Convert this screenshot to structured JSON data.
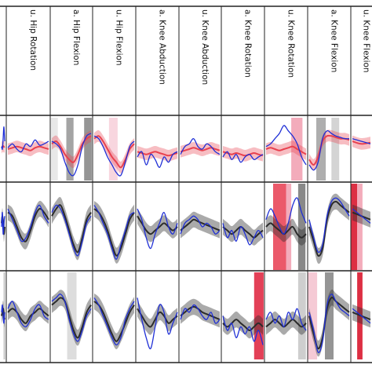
{
  "chart_data": {
    "type": "line",
    "title": "",
    "xlabel": "",
    "ylabel": "",
    "grid": false,
    "columns": [
      {
        "label": "",
        "text_visible": false
      },
      {
        "label": "u. Hip Rotation"
      },
      {
        "label": "a. Hip Flexion"
      },
      {
        "label": "u. Hip Flexion"
      },
      {
        "label": "a. Knee Abduction"
      },
      {
        "label": "u. Knee Abduction"
      },
      {
        "label": "a. Knee Rotation"
      },
      {
        "label": "u. Knee Rotation"
      },
      {
        "label": "a. Knee Flexion"
      },
      {
        "label": "u. Knee Flexion"
      }
    ],
    "rows": [
      {
        "row": 1,
        "mean_band_color": "#e8414f",
        "subject_color": "#1f2fd6"
      },
      {
        "row": 2,
        "mean_band_color": "#2b2b2b",
        "subject_color": "#1f2fd6"
      },
      {
        "row": 3,
        "mean_band_color": "#2b2b2b",
        "subject_color": "#1f2fd6"
      }
    ],
    "series": [
      {
        "row": 1,
        "col": 0,
        "mean": [
          0.05,
          0.1,
          0.12,
          0.08,
          0.1
        ],
        "subject": [
          0.1,
          0.0,
          0.4,
          0.85,
          0.3
        ]
      },
      {
        "row": 1,
        "col": 1,
        "mean": [
          0.0,
          0.05,
          0.1,
          0.05,
          0.0,
          -0.05,
          0.05,
          0.1,
          0.05,
          0.0
        ],
        "subject": [
          0.05,
          0.2,
          0.0,
          -0.1,
          0.2,
          0.1,
          0.35,
          0.15,
          0.2,
          0.3
        ]
      },
      {
        "row": 1,
        "col": 2,
        "mean": [
          0.2,
          0.3,
          0.1,
          -0.2,
          -0.4,
          -0.5,
          -0.2,
          0.2,
          0.4,
          0.5
        ],
        "subject": [
          0.3,
          0.2,
          0.0,
          -0.5,
          -0.9,
          -1.0,
          -0.6,
          0.1,
          0.5,
          0.6
        ]
      },
      {
        "row": 1,
        "col": 3,
        "mean": [
          0.4,
          0.5,
          0.3,
          0.0,
          -0.3,
          -0.5,
          -0.7,
          -0.4,
          0.0,
          0.2
        ],
        "subject": [
          0.5,
          0.4,
          0.1,
          -0.3,
          -0.6,
          -0.9,
          -1.0,
          -0.5,
          0.1,
          0.3
        ]
      },
      {
        "row": 1,
        "col": 4,
        "mean": [
          -0.1,
          -0.15,
          -0.2,
          -0.15,
          -0.1,
          -0.15,
          -0.2,
          -0.25,
          -0.2,
          -0.15
        ],
        "subject": [
          -0.3,
          -0.1,
          -0.6,
          -0.2,
          -0.4,
          -0.7,
          -0.3,
          -0.5,
          -0.2,
          -0.1
        ]
      },
      {
        "row": 1,
        "col": 5,
        "mean": [
          -0.1,
          -0.05,
          0.0,
          0.05,
          0.0,
          -0.05,
          0.0,
          0.05,
          0.0,
          -0.05
        ],
        "subject": [
          -0.2,
          0.1,
          0.2,
          0.4,
          0.1,
          0.0,
          0.2,
          0.1,
          -0.1,
          -0.2
        ]
      },
      {
        "row": 1,
        "col": 6,
        "mean": [
          -0.1,
          -0.15,
          -0.2,
          -0.15,
          -0.2,
          -0.25,
          -0.2,
          -0.15,
          -0.2,
          -0.25
        ],
        "subject": [
          -0.3,
          -0.1,
          -0.4,
          -0.2,
          -0.5,
          -0.3,
          -0.2,
          -0.4,
          -0.3,
          -0.2
        ]
      },
      {
        "row": 1,
        "col": 7,
        "mean": [
          0.0,
          0.05,
          0.0,
          -0.05,
          0.0,
          0.05,
          0.1,
          0.0,
          -0.1,
          -0.2
        ],
        "subject": [
          0.1,
          0.2,
          0.4,
          0.6,
          0.9,
          0.7,
          0.5,
          0.2,
          -0.3,
          -0.6
        ]
      },
      {
        "row": 1,
        "col": 8,
        "mean": [
          -0.4,
          -0.6,
          -0.3,
          0.3,
          0.5,
          0.5,
          0.45,
          0.4,
          0.4,
          0.35
        ],
        "subject": [
          -0.6,
          -0.8,
          -0.5,
          0.4,
          0.7,
          0.6,
          0.5,
          0.45,
          0.4,
          0.4
        ]
      },
      {
        "row": 1,
        "col": 9,
        "mean": [
          0.3,
          0.2,
          0.25
        ],
        "subject": [
          0.4,
          0.3,
          0.2
        ]
      },
      {
        "row": 2,
        "col": 0,
        "mean": [
          0.1,
          0.3,
          0.1,
          -0.2,
          0.0
        ],
        "subject": [
          0.0,
          0.4,
          -0.2,
          0.1,
          0.3
        ]
      },
      {
        "row": 2,
        "col": 1,
        "mean": [
          0.4,
          0.3,
          0.0,
          -0.3,
          -0.4,
          -0.1,
          0.3,
          0.5,
          0.4,
          0.2
        ],
        "subject": [
          0.5,
          0.2,
          -0.1,
          -0.4,
          -0.3,
          0.0,
          0.4,
          0.6,
          0.3,
          0.1
        ]
      },
      {
        "row": 2,
        "col": 2,
        "mean": [
          0.3,
          0.5,
          0.6,
          0.3,
          -0.1,
          -0.5,
          -0.7,
          -0.3,
          0.2,
          0.4
        ],
        "subject": [
          0.4,
          0.6,
          0.5,
          0.2,
          -0.2,
          -0.6,
          -0.8,
          -0.4,
          0.1,
          0.3
        ]
      },
      {
        "row": 2,
        "col": 3,
        "mean": [
          0.5,
          0.4,
          0.2,
          -0.1,
          -0.5,
          -0.8,
          -0.6,
          -0.2,
          0.2,
          0.4
        ],
        "subject": [
          0.6,
          0.4,
          0.1,
          -0.2,
          -0.6,
          -0.9,
          -0.5,
          -0.1,
          0.3,
          0.4
        ]
      },
      {
        "row": 2,
        "col": 4,
        "mean": [
          0.3,
          0.1,
          -0.1,
          -0.2,
          -0.1,
          0.0,
          0.1,
          0.0,
          -0.1,
          0.0
        ],
        "subject": [
          0.5,
          0.2,
          -0.3,
          -0.6,
          -0.2,
          0.1,
          0.4,
          0.0,
          -0.2,
          0.1
        ]
      },
      {
        "row": 2,
        "col": 5,
        "mean": [
          -0.1,
          0.0,
          0.1,
          0.2,
          0.15,
          0.1,
          0.05,
          0.0,
          -0.05,
          -0.1
        ],
        "subject": [
          -0.2,
          0.1,
          0.2,
          0.3,
          0.2,
          0.0,
          0.1,
          0.0,
          -0.2,
          -0.1
        ]
      },
      {
        "row": 2,
        "col": 6,
        "mean": [
          0.0,
          -0.1,
          -0.2,
          -0.1,
          0.0,
          -0.1,
          -0.2,
          -0.3,
          -0.2,
          -0.1
        ],
        "subject": [
          0.1,
          -0.3,
          -0.1,
          -0.4,
          0.0,
          -0.2,
          -0.5,
          -0.3,
          -0.1,
          -0.3
        ]
      },
      {
        "row": 2,
        "col": 7,
        "mean": [
          0.0,
          0.1,
          0.0,
          -0.1,
          -0.2,
          -0.1,
          0.0,
          -0.2,
          -0.3,
          -0.2
        ],
        "subject": [
          0.2,
          0.5,
          0.3,
          0.0,
          -0.2,
          0.1,
          0.6,
          0.8,
          0.4,
          0.1
        ]
      },
      {
        "row": 2,
        "col": 8,
        "mean": [
          0.0,
          -0.4,
          -0.8,
          -0.6,
          0.2,
          0.6,
          0.7,
          0.6,
          0.5,
          0.4
        ],
        "subject": [
          0.2,
          -0.3,
          -0.7,
          -0.5,
          0.3,
          0.7,
          0.8,
          0.7,
          0.5,
          0.3
        ]
      },
      {
        "row": 2,
        "col": 9,
        "mean": [
          0.4,
          0.3,
          0.2
        ],
        "subject": [
          0.5,
          0.3,
          0.1
        ]
      },
      {
        "row": 3,
        "col": 0,
        "mean": [
          0.0,
          0.1,
          0.2,
          0.0,
          -0.1
        ],
        "subject": [
          0.1,
          0.3,
          0.0,
          -0.2,
          0.1
        ]
      },
      {
        "row": 3,
        "col": 1,
        "mean": [
          0.1,
          0.2,
          0.1,
          -0.1,
          -0.2,
          0.0,
          0.1,
          0.2,
          0.1,
          0.0
        ],
        "subject": [
          0.2,
          0.4,
          0.1,
          -0.2,
          -0.3,
          -0.1,
          0.2,
          0.3,
          0.0,
          -0.1
        ]
      },
      {
        "row": 3,
        "col": 2,
        "mean": [
          0.3,
          0.4,
          0.5,
          0.4,
          0.0,
          -0.4,
          -0.6,
          -0.3,
          0.1,
          0.3
        ],
        "subject": [
          0.4,
          0.5,
          0.6,
          0.4,
          -0.1,
          -0.5,
          -0.7,
          -0.4,
          0.0,
          0.2
        ]
      },
      {
        "row": 3,
        "col": 3,
        "mean": [
          0.4,
          0.3,
          0.1,
          -0.2,
          -0.5,
          -0.7,
          -0.5,
          -0.2,
          0.1,
          0.3
        ],
        "subject": [
          0.5,
          0.3,
          0.0,
          -0.3,
          -0.6,
          -0.8,
          -0.6,
          -0.1,
          0.2,
          0.4
        ]
      },
      {
        "row": 3,
        "col": 4,
        "mean": [
          0.2,
          0.0,
          -0.2,
          -0.3,
          -0.1,
          0.1,
          0.0,
          -0.2,
          -0.1,
          0.0
        ],
        "subject": [
          0.5,
          -0.1,
          -0.6,
          -0.9,
          -0.3,
          0.3,
          0.1,
          -0.5,
          -0.2,
          0.1
        ]
      },
      {
        "row": 3,
        "col": 5,
        "mean": [
          0.0,
          0.1,
          0.2,
          0.25,
          0.2,
          0.1,
          0.05,
          0.0,
          -0.05,
          -0.1
        ],
        "subject": [
          -0.1,
          0.2,
          0.1,
          0.3,
          0.2,
          0.0,
          -0.1,
          0.1,
          -0.2,
          -0.1
        ]
      },
      {
        "row": 3,
        "col": 6,
        "mean": [
          -0.2,
          -0.3,
          -0.2,
          -0.1,
          -0.2,
          -0.3,
          -0.4,
          -0.3,
          -0.2,
          -0.3
        ],
        "subject": [
          0.0,
          -0.4,
          -0.2,
          -0.6,
          -0.3,
          -0.5,
          -0.3,
          -0.7,
          -0.4,
          -0.8
        ]
      },
      {
        "row": 3,
        "col": 7,
        "mean": [
          -0.3,
          -0.2,
          -0.1,
          -0.2,
          -0.3,
          -0.2,
          -0.1,
          -0.2,
          -0.3,
          -0.2
        ],
        "subject": [
          -0.1,
          0.1,
          -0.2,
          0.0,
          -0.3,
          0.1,
          -0.1,
          0.2,
          -0.2,
          -0.4
        ]
      },
      {
        "row": 3,
        "col": 8,
        "mean": [
          0.0,
          -0.5,
          -0.9,
          -0.6,
          0.2,
          0.5,
          0.4,
          0.3,
          0.2,
          0.1
        ],
        "subject": [
          0.1,
          -0.4,
          -1.0,
          -0.7,
          0.3,
          0.6,
          0.4,
          0.2,
          0.1,
          0.0
        ]
      },
      {
        "row": 3,
        "col": 9,
        "mean": [
          0.1,
          0.0,
          -0.1
        ],
        "subject": [
          0.2,
          0.0,
          -0.2
        ]
      }
    ],
    "highlights": [
      {
        "row": 1,
        "col": 2,
        "from": 0.02,
        "to": 0.18,
        "color": "#e6e6e6"
      },
      {
        "row": 1,
        "col": 2,
        "from": 0.38,
        "to": 0.55,
        "color": "#9a9a9a"
      },
      {
        "row": 1,
        "col": 2,
        "from": 0.8,
        "to": 0.98,
        "color": "#8a8a8a"
      },
      {
        "row": 1,
        "col": 3,
        "from": 0.38,
        "to": 0.58,
        "color": "#f7d2dc"
      },
      {
        "row": 1,
        "col": 7,
        "from": 0.62,
        "to": 0.88,
        "color": "#f2a3b4"
      },
      {
        "row": 1,
        "col": 8,
        "from": 0.2,
        "to": 0.42,
        "color": "#a5a5a5"
      },
      {
        "row": 1,
        "col": 8,
        "from": 0.55,
        "to": 0.73,
        "color": "#cfcfcf"
      },
      {
        "row": 2,
        "col": 7,
        "from": 0.2,
        "to": 0.5,
        "color": "#e9475a"
      },
      {
        "row": 2,
        "col": 7,
        "from": 0.5,
        "to": 0.62,
        "color": "#f2a3b4"
      },
      {
        "row": 2,
        "col": 7,
        "from": 0.78,
        "to": 0.95,
        "color": "#7c7c7c"
      },
      {
        "row": 2,
        "col": 9,
        "from": 0.0,
        "to": 0.3,
        "color": "#d9182f"
      },
      {
        "row": 2,
        "col": 9,
        "from": 0.3,
        "to": 0.55,
        "color": "#f2a3b4"
      },
      {
        "row": 3,
        "col": 0,
        "from": 0.58,
        "to": 0.8,
        "color": "#bdbdbd"
      },
      {
        "row": 3,
        "col": 2,
        "from": 0.4,
        "to": 0.62,
        "color": "#d9d9d9"
      },
      {
        "row": 3,
        "col": 6,
        "from": 0.76,
        "to": 0.98,
        "color": "#e02b45"
      },
      {
        "row": 3,
        "col": 7,
        "from": 0.78,
        "to": 0.96,
        "color": "#c9c9c9"
      },
      {
        "row": 3,
        "col": 8,
        "from": 0.0,
        "to": 0.22,
        "color": "#f4c4d0"
      },
      {
        "row": 3,
        "col": 8,
        "from": 0.4,
        "to": 0.6,
        "color": "#8a8a8a"
      },
      {
        "row": 3,
        "col": 9,
        "from": 0.3,
        "to": 0.55,
        "color": "#d9182f"
      }
    ]
  }
}
